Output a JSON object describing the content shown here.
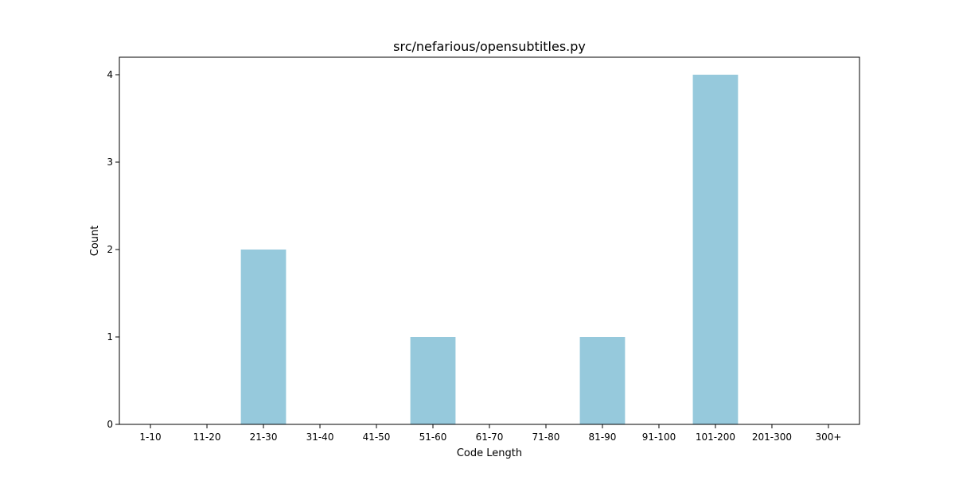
{
  "chart_data": {
    "type": "bar",
    "title": "src/nefarious/opensubtitles.py",
    "xlabel": "Code Length",
    "ylabel": "Count",
    "categories": [
      "1-10",
      "11-20",
      "21-30",
      "31-40",
      "41-50",
      "51-60",
      "61-70",
      "71-80",
      "81-90",
      "91-100",
      "101-200",
      "201-300",
      "300+"
    ],
    "values": [
      0,
      0,
      2,
      0,
      0,
      1,
      0,
      0,
      1,
      0,
      4,
      0,
      0
    ],
    "ylim": [
      0,
      4.2
    ],
    "yticks": [
      0,
      1,
      2,
      3,
      4
    ],
    "grid": false,
    "bar_color": "#96c9dc",
    "axis_color": "#000000"
  }
}
